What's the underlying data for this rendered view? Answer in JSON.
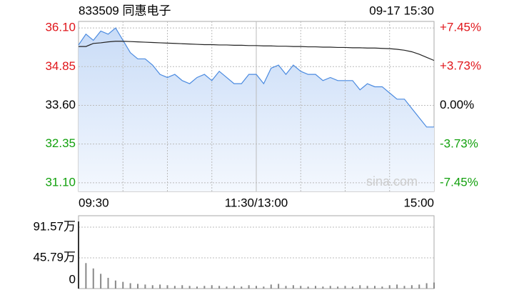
{
  "chart_data": [
    {
      "type": "line",
      "title": "833509 同惠电子",
      "subtitle": "09-17 15:30",
      "watermark": "sina.com",
      "x": [
        0,
        5,
        10,
        15,
        20,
        25,
        30,
        35,
        40,
        45,
        50,
        55,
        60,
        65,
        70,
        75,
        80,
        85,
        90,
        95,
        100,
        105,
        110,
        115,
        120,
        125,
        130,
        135,
        140,
        145,
        150,
        155,
        160,
        165,
        170,
        175,
        180,
        185,
        190,
        195,
        200,
        205,
        210,
        215,
        220,
        225,
        230,
        235,
        240
      ],
      "xlim": [
        0,
        240
      ],
      "xticks": [
        {
          "value": 0,
          "label": "09:30"
        },
        {
          "value": 120,
          "label": "11:30/13:00"
        },
        {
          "value": 240,
          "label": "15:00"
        }
      ],
      "series": [
        {
          "name": "price",
          "color": "#4a8ae0",
          "values": [
            35.55,
            35.9,
            35.7,
            36.0,
            35.9,
            36.1,
            35.7,
            35.3,
            35.1,
            35.1,
            34.9,
            34.6,
            34.5,
            34.6,
            34.4,
            34.3,
            34.5,
            34.6,
            34.4,
            34.7,
            34.5,
            34.3,
            34.3,
            34.6,
            34.6,
            34.3,
            34.8,
            34.9,
            34.6,
            34.9,
            34.7,
            34.6,
            34.6,
            34.4,
            34.5,
            34.4,
            34.4,
            34.4,
            34.1,
            34.3,
            34.2,
            34.2,
            34.0,
            33.8,
            33.8,
            33.5,
            33.2,
            32.9,
            32.9
          ]
        },
        {
          "name": "average",
          "color": "#222222",
          "values": [
            35.5,
            35.5,
            35.6,
            35.62,
            35.65,
            35.67,
            35.67,
            35.66,
            35.65,
            35.64,
            35.63,
            35.62,
            35.61,
            35.6,
            35.59,
            35.58,
            35.57,
            35.56,
            35.56,
            35.55,
            35.55,
            35.54,
            35.54,
            35.53,
            35.53,
            35.52,
            35.52,
            35.51,
            35.51,
            35.5,
            35.5,
            35.49,
            35.49,
            35.48,
            35.48,
            35.47,
            35.47,
            35.46,
            35.46,
            35.45,
            35.45,
            35.44,
            35.43,
            35.41,
            35.38,
            35.33,
            35.25,
            35.15,
            35.05
          ]
        }
      ],
      "ylim": [
        30.82,
        36.31
      ],
      "yticks": [
        {
          "value": 36.1,
          "label": "36.10"
        },
        34.85,
        {
          "value": 33.6,
          "label": "33.60"
        },
        32.35,
        {
          "value": 31.1,
          "label": "31.10"
        }
      ],
      "ytick_colors": [
        "#e0161b",
        "#e0161b",
        "#000000",
        "#13a10e",
        "#13a10e"
      ],
      "y2lim": [
        -8.27,
        8.07
      ],
      "y2ticks": [
        {
          "value": 7.45,
          "label": "+7.45%"
        },
        {
          "value": 3.73,
          "label": "+3.73%"
        },
        {
          "value": 0,
          "label": "0.00%"
        },
        {
          "value": -3.73,
          "label": "-3.73%"
        },
        {
          "value": -7.45,
          "label": "-7.45%"
        }
      ],
      "y2tick_colors": [
        "#e0161b",
        "#e0161b",
        "#000000",
        "#13a10e",
        "#13a10e"
      ],
      "grid": true
    },
    {
      "type": "bar",
      "x": [
        0,
        5,
        10,
        15,
        20,
        25,
        30,
        35,
        40,
        45,
        50,
        55,
        60,
        65,
        70,
        75,
        80,
        85,
        90,
        95,
        100,
        105,
        110,
        115,
        120,
        125,
        130,
        135,
        140,
        145,
        150,
        155,
        160,
        165,
        170,
        175,
        180,
        185,
        190,
        195,
        200,
        205,
        210,
        215,
        220,
        225,
        230,
        235,
        240
      ],
      "xlim": [
        0,
        240
      ],
      "values": [
        100,
        38,
        30,
        22,
        16,
        12,
        10,
        8,
        7,
        6,
        5,
        6,
        5,
        4,
        5,
        4,
        3,
        4,
        5,
        4,
        3,
        4,
        3,
        5,
        4,
        3,
        6,
        7,
        4,
        5,
        4,
        3,
        4,
        3,
        4,
        3,
        4,
        3,
        5,
        4,
        4,
        3,
        5,
        6,
        4,
        5,
        6,
        8,
        9
      ],
      "color": "#888888",
      "ylim": [
        0,
        108.6
      ],
      "yticks": [
        {
          "value": 91.57,
          "label": "91.57万"
        },
        {
          "value": 45.79,
          "label": "45.79万"
        },
        0
      ],
      "grid": true
    }
  ]
}
